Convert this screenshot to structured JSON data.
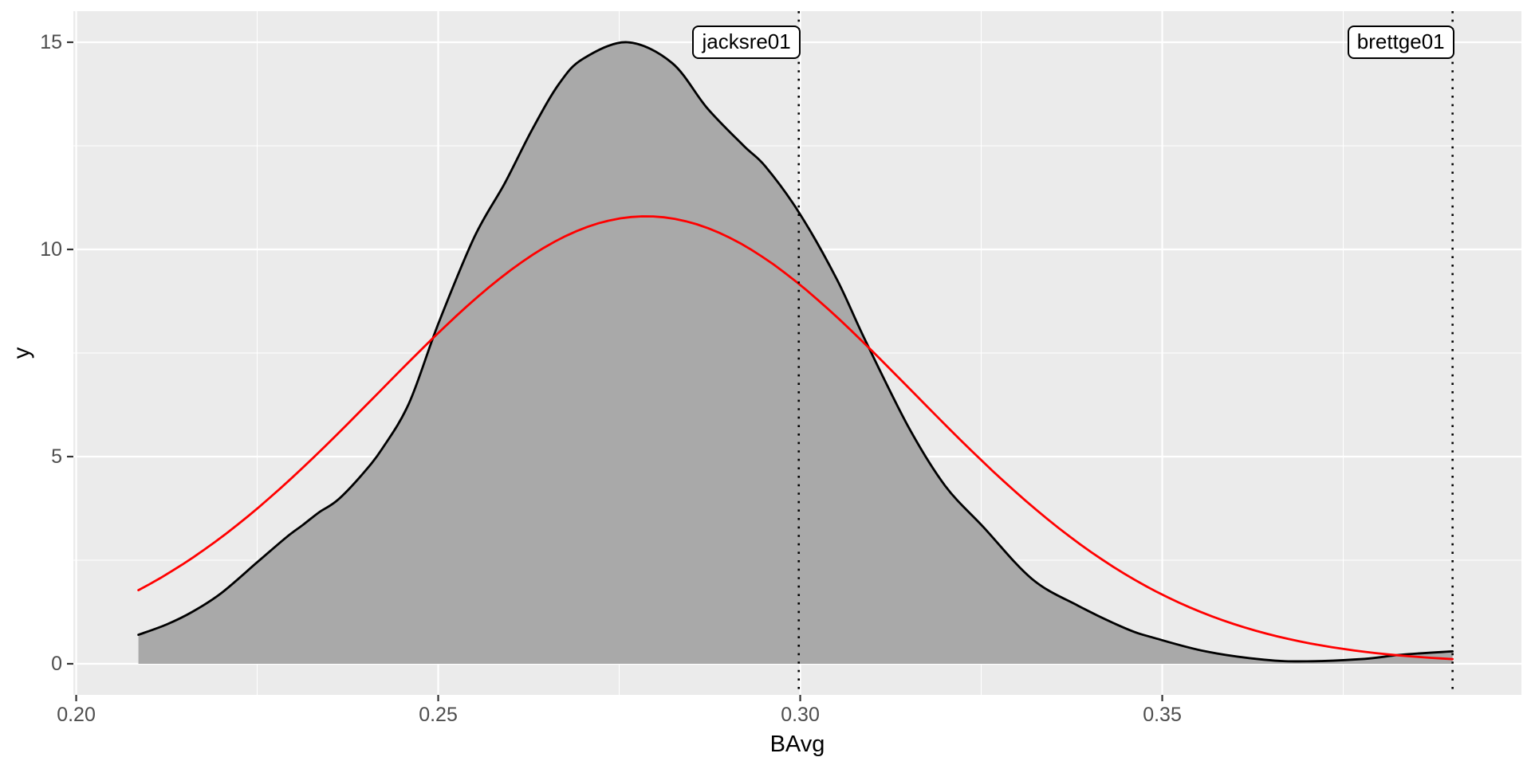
{
  "chart_data": {
    "type": "area",
    "subtype": "kernel-density-with-normal-overlay",
    "title": "",
    "xlabel": "BAvg",
    "ylabel": "y",
    "xlim": [
      0.19961,
      0.39961
    ],
    "ylim": [
      -0.75,
      15.75
    ],
    "grid": true,
    "legend": "none",
    "panel_bg": "#EBEBEB",
    "grid_color": "#FFFFFF",
    "axis_text_color": "#4D4D4D",
    "axis_title_color": "#000000",
    "tick_mark_color": "#333333",
    "x_major_ticks": [
      {
        "value": 0.2,
        "label": "0.20"
      },
      {
        "value": 0.25,
        "label": "0.25"
      },
      {
        "value": 0.3,
        "label": "0.30"
      },
      {
        "value": 0.35,
        "label": "0.35"
      }
    ],
    "x_minor_ticks": [
      0.225,
      0.275,
      0.325,
      0.375
    ],
    "y_major_ticks": [
      {
        "value": 0,
        "label": "0"
      },
      {
        "value": 5,
        "label": "5"
      },
      {
        "value": 10,
        "label": "10"
      },
      {
        "value": 15,
        "label": "15"
      }
    ],
    "y_minor_ticks": [
      2.5,
      7.5,
      12.5
    ],
    "series": [
      {
        "name": "BAvg-density",
        "type": "density-area",
        "line_color": "#000000",
        "line_width": 2.8,
        "fill_color": "#A9A9A9",
        "baseline": 0,
        "points": [
          [
            0.2086,
            0.7
          ],
          [
            0.2125,
            0.95
          ],
          [
            0.216,
            1.25
          ],
          [
            0.22,
            1.7
          ],
          [
            0.225,
            2.45
          ],
          [
            0.229,
            3.05
          ],
          [
            0.2313,
            3.35
          ],
          [
            0.2335,
            3.65
          ],
          [
            0.2361,
            3.95
          ],
          [
            0.2394,
            4.55
          ],
          [
            0.2423,
            5.2
          ],
          [
            0.246,
            6.3
          ],
          [
            0.25,
            8.2
          ],
          [
            0.255,
            10.3
          ],
          [
            0.2592,
            11.6
          ],
          [
            0.263,
            12.9
          ],
          [
            0.2667,
            14.0
          ],
          [
            0.27,
            14.6
          ],
          [
            0.2761,
            15.0
          ],
          [
            0.2823,
            14.5
          ],
          [
            0.2872,
            13.4
          ],
          [
            0.2922,
            12.5
          ],
          [
            0.2952,
            12.0
          ],
          [
            0.2998,
            10.9
          ],
          [
            0.305,
            9.3
          ],
          [
            0.309,
            7.8
          ],
          [
            0.315,
            5.7
          ],
          [
            0.32,
            4.3
          ],
          [
            0.3253,
            3.3
          ],
          [
            0.332,
            2.05
          ],
          [
            0.3384,
            1.4
          ],
          [
            0.345,
            0.85
          ],
          [
            0.349,
            0.62
          ],
          [
            0.356,
            0.3
          ],
          [
            0.364,
            0.1
          ],
          [
            0.37,
            0.06
          ],
          [
            0.378,
            0.12
          ],
          [
            0.383,
            0.22
          ],
          [
            0.3901,
            0.3
          ]
        ]
      },
      {
        "name": "normal-curve",
        "type": "gaussian-line",
        "line_color": "#FF0000",
        "line_width": 2.8,
        "gaussian": {
          "peak": 10.8,
          "mean": 0.2787,
          "sd": 0.0369
        },
        "x_start": 0.2086,
        "x_end": 0.3901
      }
    ],
    "annotations": [
      {
        "id": "jacksre01",
        "label": "jacksre01",
        "x": 0.2998,
        "line_style": "dotted",
        "line_color": "#000000"
      },
      {
        "id": "brettge01",
        "label": "brettge01",
        "x": 0.3901,
        "line_style": "dotted",
        "line_color": "#000000"
      }
    ]
  }
}
